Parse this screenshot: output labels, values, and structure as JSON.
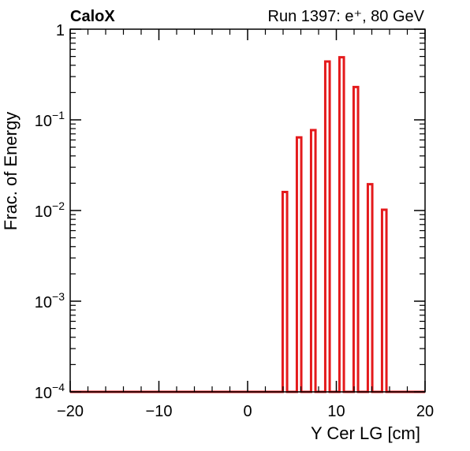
{
  "chart_data": {
    "type": "bar",
    "title_left": "CaloX",
    "title_right": "Run 1397: e⁺, 80 GeV",
    "xlabel": "Y Cer LG [cm]",
    "ylabel": "Frac. of Energy",
    "xlim": [
      -20,
      20
    ],
    "ylim": [
      0.0001,
      1
    ],
    "yscale": "log",
    "grid": false,
    "legend": "none",
    "x_ticks": [
      -20,
      -10,
      0,
      10,
      20
    ],
    "x_tick_labels": [
      "−20",
      "−10",
      "0",
      "10",
      "20"
    ],
    "y_ticks": [
      {
        "value": 1,
        "base": "1",
        "exp": ""
      },
      {
        "value": 0.1,
        "base": "10",
        "exp": "−1"
      },
      {
        "value": 0.01,
        "base": "10",
        "exp": "−2"
      },
      {
        "value": 0.001,
        "base": "10",
        "exp": "−3"
      },
      {
        "value": 0.0001,
        "base": "10",
        "exp": "−4"
      }
    ],
    "bin_width": 0.5,
    "bars": [
      {
        "x": 4.2,
        "value": 0.016
      },
      {
        "x": 5.8,
        "value": 0.064
      },
      {
        "x": 7.4,
        "value": 0.077
      },
      {
        "x": 9.0,
        "value": 0.44
      },
      {
        "x": 10.6,
        "value": 0.49
      },
      {
        "x": 12.2,
        "value": 0.23
      },
      {
        "x": 13.8,
        "value": 0.0195
      },
      {
        "x": 15.4,
        "value": 0.0102
      }
    ],
    "colors": {
      "series": "#e41a1c",
      "axis": "#000000",
      "background": "#ffffff"
    }
  }
}
